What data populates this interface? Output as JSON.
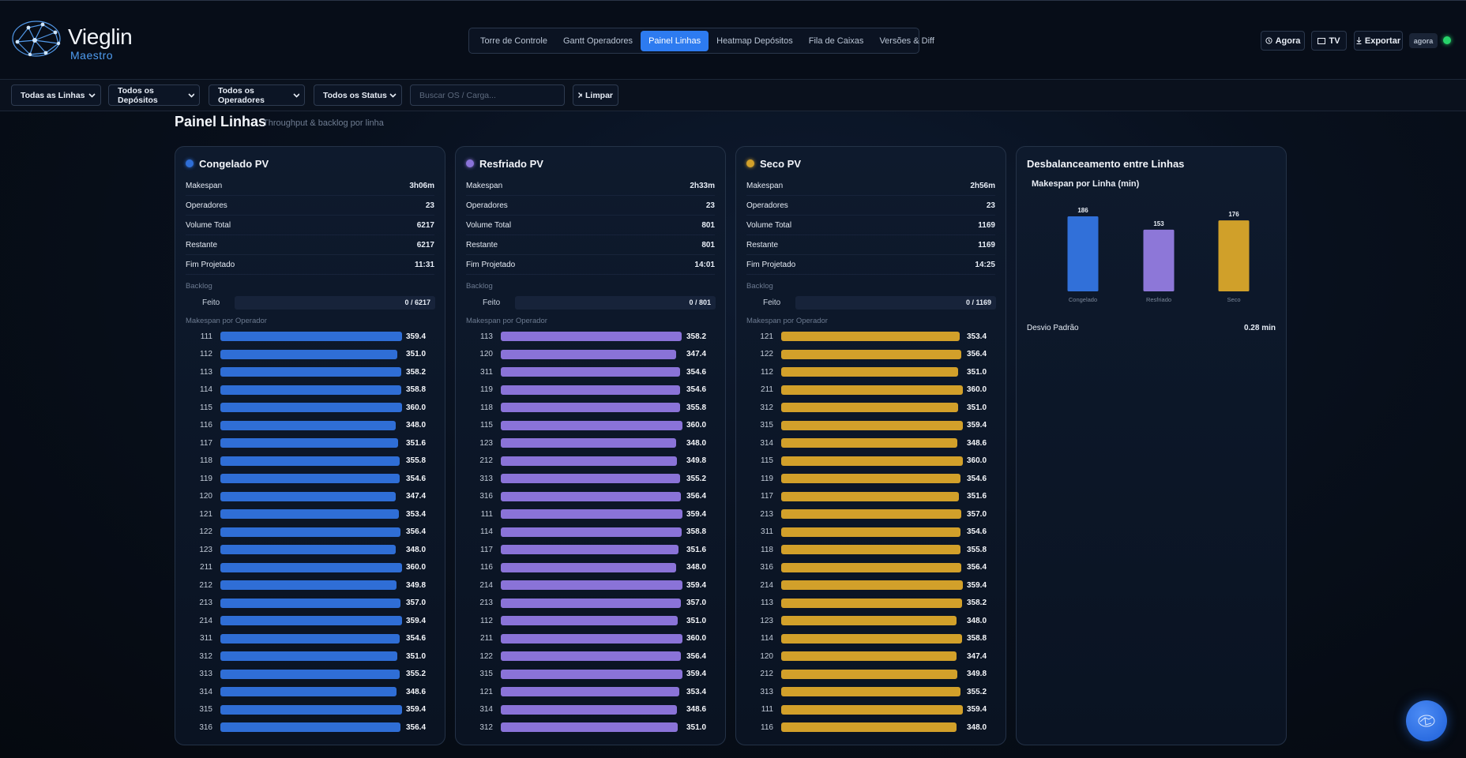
{
  "header": {
    "brand": "Vieglin",
    "subbrand": "Maestro",
    "tabs": [
      {
        "label": "Torre de Controle"
      },
      {
        "label": "Gantt Operadores"
      },
      {
        "label": "Painel Linhas",
        "active": true
      },
      {
        "label": "Heatmap Depósitos"
      },
      {
        "label": "Fila de Caixas"
      },
      {
        "label": "Versões & Diff"
      }
    ],
    "actions": [
      "Agora",
      "TV",
      "Exportar"
    ],
    "status": "agora"
  },
  "filters": {
    "selects": [
      "Todas as Linhas",
      "Todos os Depósitos",
      "Todos os Operadores",
      "Todos os Status"
    ],
    "search_placeholder": "Buscar OS / Carga...",
    "clear": "Limpar"
  },
  "page": {
    "title": "Painel Linhas",
    "subtitle": "Throughput & backlog por linha"
  },
  "lines": [
    {
      "name": "Congelado PV",
      "color": "#2f6ed6",
      "stats": [
        {
          "label": "Makespan",
          "value": "3h06m"
        },
        {
          "label": "Operadores",
          "value": 23
        },
        {
          "label": "Volume Total",
          "value": 6217
        },
        {
          "label": "Restante",
          "value": 6217
        },
        {
          "label": "Fim Projetado",
          "value": "11:31"
        }
      ],
      "backlog_title": "Backlog",
      "backlog": {
        "label": "Feito",
        "value": "0 / 6217"
      },
      "operators_title": "Makespan por Operador",
      "operators": [
        {
          "id": "111",
          "value": 359.4,
          "label": "359.4"
        },
        {
          "id": "112",
          "value": 351.0,
          "label": "351.0"
        },
        {
          "id": "113",
          "value": 358.2,
          "label": "358.2"
        },
        {
          "id": "114",
          "value": 358.8,
          "label": "358.8"
        },
        {
          "id": "115",
          "value": 360.0,
          "label": "360.0"
        },
        {
          "id": "116",
          "value": 348.0,
          "label": "348.0"
        },
        {
          "id": "117",
          "value": 351.6,
          "label": "351.6"
        },
        {
          "id": "118",
          "value": 355.8,
          "label": "355.8"
        },
        {
          "id": "119",
          "value": 354.6,
          "label": "354.6"
        },
        {
          "id": "120",
          "value": 347.4,
          "label": "347.4"
        },
        {
          "id": "121",
          "value": 353.4,
          "label": "353.4"
        },
        {
          "id": "122",
          "value": 356.4,
          "label": "356.4"
        },
        {
          "id": "123",
          "value": 348.0,
          "label": "348.0"
        },
        {
          "id": "211",
          "value": 360.0,
          "label": "360.0"
        },
        {
          "id": "212",
          "value": 349.8,
          "label": "349.8"
        },
        {
          "id": "213",
          "value": 357.0,
          "label": "357.0"
        },
        {
          "id": "214",
          "value": 359.4,
          "label": "359.4"
        },
        {
          "id": "311",
          "value": 354.6,
          "label": "354.6"
        },
        {
          "id": "312",
          "value": 351.0,
          "label": "351.0"
        },
        {
          "id": "313",
          "value": 355.2,
          "label": "355.2"
        },
        {
          "id": "314",
          "value": 348.6,
          "label": "348.6"
        },
        {
          "id": "315",
          "value": 359.4,
          "label": "359.4"
        },
        {
          "id": "316",
          "value": 356.4,
          "label": "356.4"
        }
      ]
    },
    {
      "name": "Resfriado PV",
      "color": "#8a73d8",
      "stats": [
        {
          "label": "Makespan",
          "value": "2h33m"
        },
        {
          "label": "Operadores",
          "value": 23
        },
        {
          "label": "Volume Total",
          "value": 801
        },
        {
          "label": "Restante",
          "value": 801
        },
        {
          "label": "Fim Projetado",
          "value": "14:01"
        }
      ],
      "backlog_title": "Backlog",
      "backlog": {
        "label": "Feito",
        "value": "0 / 801"
      },
      "operators_title": "Makespan por Operador",
      "operators": [
        {
          "id": "113",
          "value": 358.2,
          "label": "358.2"
        },
        {
          "id": "120",
          "value": 347.4,
          "label": "347.4"
        },
        {
          "id": "311",
          "value": 354.6,
          "label": "354.6"
        },
        {
          "id": "119",
          "value": 354.6,
          "label": "354.6"
        },
        {
          "id": "118",
          "value": 355.8,
          "label": "355.8"
        },
        {
          "id": "115",
          "value": 360.0,
          "label": "360.0"
        },
        {
          "id": "123",
          "value": 348.0,
          "label": "348.0"
        },
        {
          "id": "212",
          "value": 349.8,
          "label": "349.8"
        },
        {
          "id": "313",
          "value": 355.2,
          "label": "355.2"
        },
        {
          "id": "316",
          "value": 356.4,
          "label": "356.4"
        },
        {
          "id": "111",
          "value": 359.4,
          "label": "359.4"
        },
        {
          "id": "114",
          "value": 358.8,
          "label": "358.8"
        },
        {
          "id": "117",
          "value": 351.6,
          "label": "351.6"
        },
        {
          "id": "116",
          "value": 348.0,
          "label": "348.0"
        },
        {
          "id": "214",
          "value": 359.4,
          "label": "359.4"
        },
        {
          "id": "213",
          "value": 357.0,
          "label": "357.0"
        },
        {
          "id": "112",
          "value": 351.0,
          "label": "351.0"
        },
        {
          "id": "211",
          "value": 360.0,
          "label": "360.0"
        },
        {
          "id": "122",
          "value": 356.4,
          "label": "356.4"
        },
        {
          "id": "315",
          "value": 359.4,
          "label": "359.4"
        },
        {
          "id": "121",
          "value": 353.4,
          "label": "353.4"
        },
        {
          "id": "314",
          "value": 348.6,
          "label": "348.6"
        },
        {
          "id": "312",
          "value": 351.0,
          "label": "351.0"
        }
      ]
    },
    {
      "name": "Seco PV",
      "color": "#d2a02a",
      "stats": [
        {
          "label": "Makespan",
          "value": "2h56m"
        },
        {
          "label": "Operadores",
          "value": 23
        },
        {
          "label": "Volume Total",
          "value": 1169
        },
        {
          "label": "Restante",
          "value": 1169
        },
        {
          "label": "Fim Projetado",
          "value": "14:25"
        }
      ],
      "backlog_title": "Backlog",
      "backlog": {
        "label": "Feito",
        "value": "0 / 1169"
      },
      "operators_title": "Makespan por Operador",
      "operators": [
        {
          "id": "121",
          "value": 353.4,
          "label": "353.4"
        },
        {
          "id": "122",
          "value": 356.4,
          "label": "356.4"
        },
        {
          "id": "112",
          "value": 351.0,
          "label": "351.0"
        },
        {
          "id": "211",
          "value": 360.0,
          "label": "360.0"
        },
        {
          "id": "312",
          "value": 351.0,
          "label": "351.0"
        },
        {
          "id": "315",
          "value": 359.4,
          "label": "359.4"
        },
        {
          "id": "314",
          "value": 348.6,
          "label": "348.6"
        },
        {
          "id": "115",
          "value": 360.0,
          "label": "360.0"
        },
        {
          "id": "119",
          "value": 354.6,
          "label": "354.6"
        },
        {
          "id": "117",
          "value": 351.6,
          "label": "351.6"
        },
        {
          "id": "213",
          "value": 357.0,
          "label": "357.0"
        },
        {
          "id": "311",
          "value": 354.6,
          "label": "354.6"
        },
        {
          "id": "118",
          "value": 355.8,
          "label": "355.8"
        },
        {
          "id": "316",
          "value": 356.4,
          "label": "356.4"
        },
        {
          "id": "214",
          "value": 359.4,
          "label": "359.4"
        },
        {
          "id": "113",
          "value": 358.2,
          "label": "358.2"
        },
        {
          "id": "123",
          "value": 348.0,
          "label": "348.0"
        },
        {
          "id": "114",
          "value": 358.8,
          "label": "358.8"
        },
        {
          "id": "120",
          "value": 347.4,
          "label": "347.4"
        },
        {
          "id": "212",
          "value": 349.8,
          "label": "349.8"
        },
        {
          "id": "313",
          "value": 355.2,
          "label": "355.2"
        },
        {
          "id": "111",
          "value": 359.4,
          "label": "359.4"
        },
        {
          "id": "116",
          "value": 348.0,
          "label": "348.0"
        }
      ]
    }
  ],
  "imbalance": {
    "title": "Desbalanceamento entre Linhas",
    "metric_label": "Desvio Padrão",
    "metric_value": "0.28 min"
  },
  "chart_data": {
    "type": "bar",
    "title": "Makespan por Linha (min)",
    "categories": [
      "Congelado",
      "Resfriado",
      "Seco"
    ],
    "values": [
      186,
      153,
      176
    ],
    "colors": [
      "#3170d9",
      "#8d77d8",
      "#d0a02a"
    ]
  }
}
